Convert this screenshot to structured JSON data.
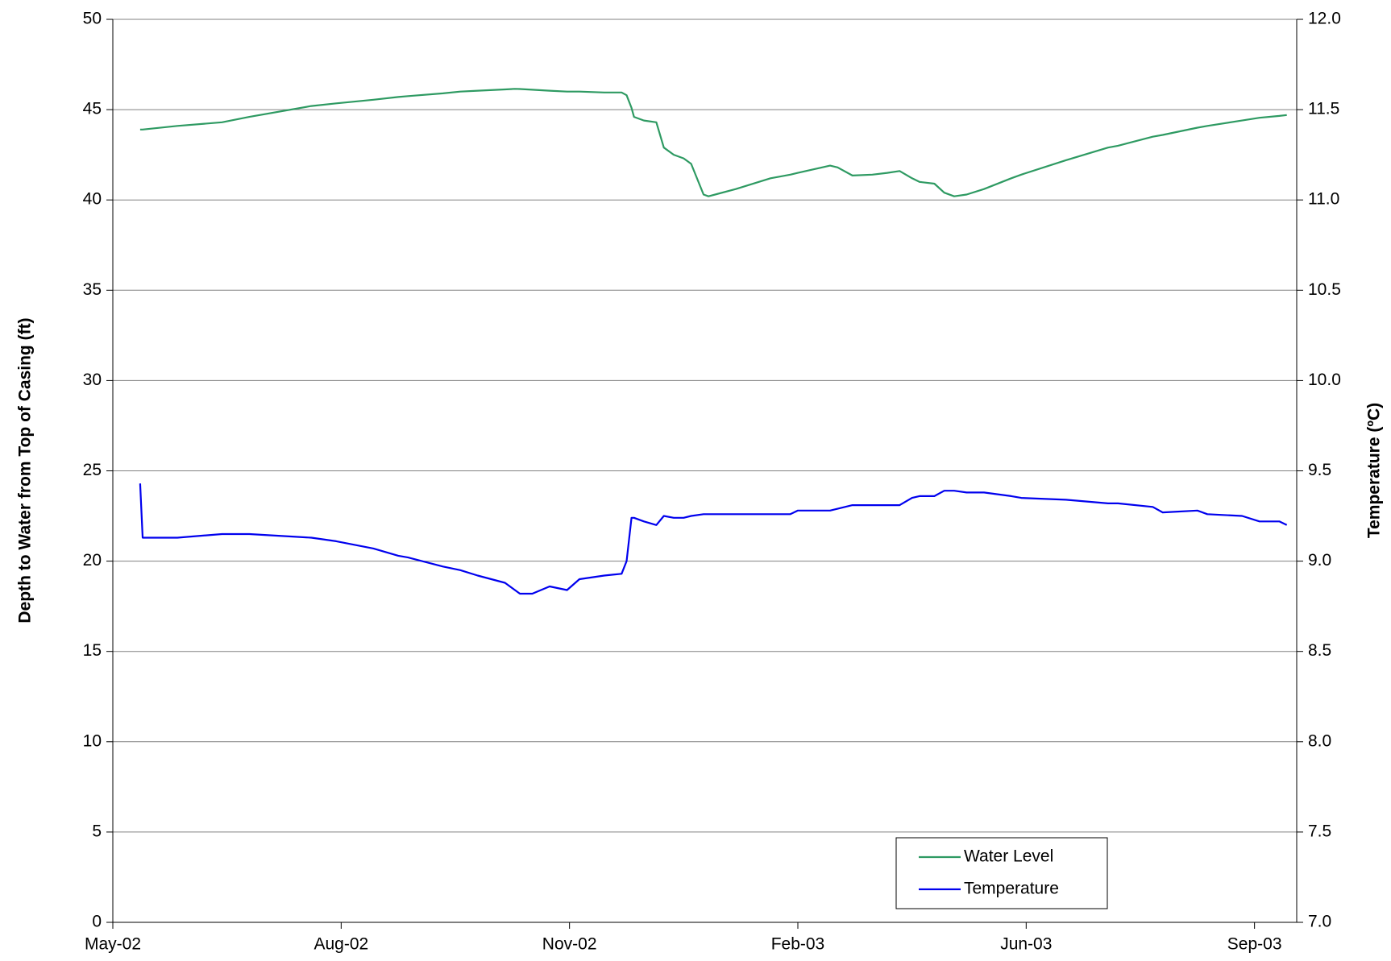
{
  "chart_data": {
    "type": "line",
    "y_label": "Depth to Water from Top of Casing (ft)",
    "y2_label": "Temperature (ºC)",
    "x": [
      11,
      12,
      26,
      44,
      55,
      80,
      90,
      105,
      115,
      119,
      133,
      140,
      147,
      158,
      162,
      164,
      169,
      176,
      183,
      188,
      198,
      205,
      207,
      209,
      210,
      214,
      219,
      222,
      226,
      230,
      233,
      238,
      240,
      251,
      265,
      273,
      276,
      289,
      292,
      298,
      306,
      312,
      317,
      322,
      325,
      331,
      335,
      339,
      344,
      351,
      362,
      366,
      384,
      401,
      405,
      419,
      423,
      437,
      441,
      455,
      462,
      470,
      473
    ],
    "xlim": [
      0,
      477
    ],
    "xticks": [
      {
        "value": 0,
        "label": "May-02"
      },
      {
        "value": 92,
        "label": "Aug-02"
      },
      {
        "value": 184,
        "label": "Nov-02"
      },
      {
        "value": 276,
        "label": "Feb-03"
      },
      {
        "value": 368,
        "label": "Jun-03"
      },
      {
        "value": 460,
        "label": "Sep-03"
      }
    ],
    "ylim": [
      0,
      50
    ],
    "yticks": [
      0,
      5,
      10,
      15,
      20,
      25,
      30,
      35,
      40,
      45,
      50
    ],
    "y2lim": [
      7,
      12
    ],
    "y2ticks": [
      {
        "value": 7,
        "label": "7.0"
      },
      7.5,
      {
        "value": 8,
        "label": "8.0"
      },
      8.5,
      {
        "value": 9,
        "label": "9.0"
      },
      9.5,
      {
        "value": 10,
        "label": "10.0"
      },
      10.5,
      {
        "value": 11,
        "label": "11.0"
      },
      11.5,
      {
        "value": 12,
        "label": "12.0"
      }
    ],
    "grid": true,
    "legend": "lower-right",
    "series": [
      {
        "name": "Water Level",
        "color": "#2e9a62",
        "values": [
          43.9,
          43.9,
          44.1,
          44.3,
          44.6,
          45.2,
          45.35,
          45.55,
          45.7,
          45.75,
          45.9,
          46.0,
          46.05,
          46.12,
          46.15,
          46.14,
          46.1,
          46.05,
          46.0,
          46.0,
          45.95,
          45.95,
          45.8,
          45.1,
          44.6,
          44.4,
          44.3,
          42.9,
          42.5,
          42.3,
          42.0,
          40.3,
          40.2,
          40.6,
          41.2,
          41.4,
          41.5,
          41.9,
          41.8,
          41.35,
          41.4,
          41.5,
          41.6,
          41.2,
          41.0,
          40.9,
          40.4,
          40.2,
          40.3,
          40.6,
          41.2,
          41.4,
          42.2,
          42.9,
          43.0,
          43.5,
          43.6,
          44.0,
          44.1,
          44.4,
          44.55,
          44.65,
          44.7
        ]
      },
      {
        "name": "Temperature",
        "color": "#0000ee",
        "axis": "y2",
        "values": [
          9.43,
          9.13,
          9.13,
          9.15,
          9.15,
          9.13,
          9.11,
          9.07,
          9.03,
          9.02,
          8.97,
          8.95,
          8.92,
          8.88,
          8.84,
          8.82,
          8.82,
          8.86,
          8.84,
          8.9,
          8.92,
          8.93,
          9.0,
          9.24,
          9.24,
          9.22,
          9.2,
          9.25,
          9.24,
          9.24,
          9.25,
          9.26,
          9.26,
          9.26,
          9.26,
          9.26,
          9.28,
          9.28,
          9.29,
          9.31,
          9.31,
          9.31,
          9.31,
          9.35,
          9.36,
          9.36,
          9.39,
          9.39,
          9.38,
          9.38,
          9.36,
          9.35,
          9.34,
          9.32,
          9.32,
          9.3,
          9.27,
          9.28,
          9.26,
          9.25,
          9.22,
          9.22,
          9.2
        ]
      }
    ]
  }
}
